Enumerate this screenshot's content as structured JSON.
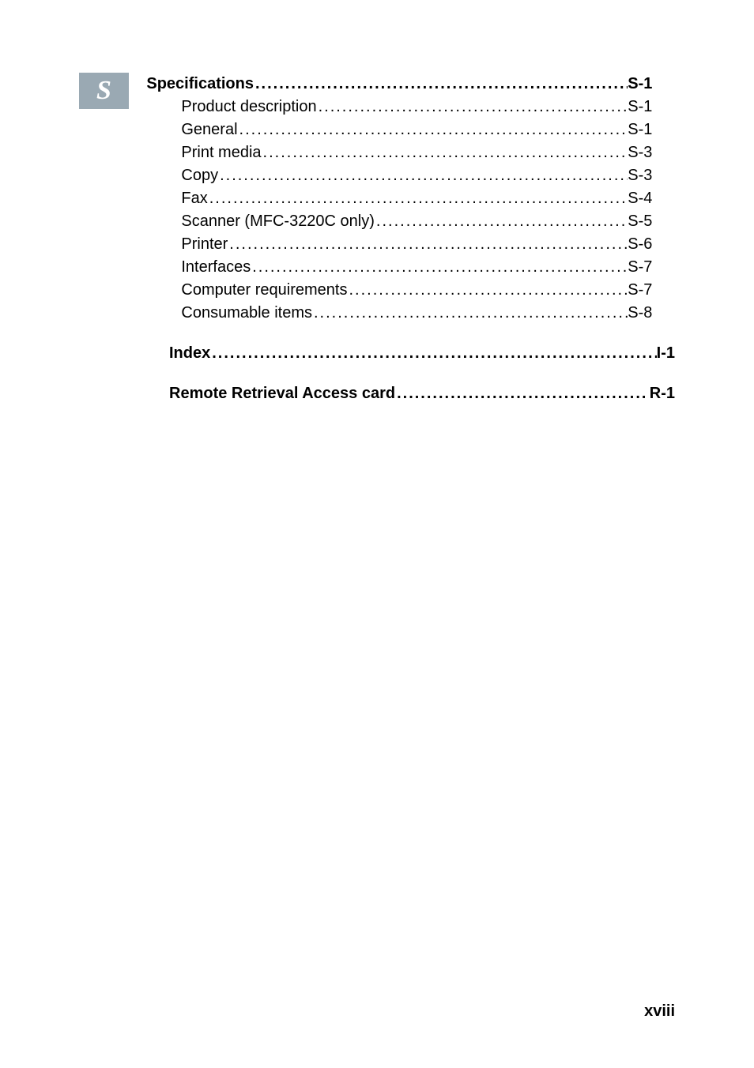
{
  "section_badge": "S",
  "toc": {
    "specifications": {
      "title": "Specifications",
      "page": "S-1",
      "items": [
        {
          "label": "Product description",
          "page": "S-1"
        },
        {
          "label": "General",
          "page": "S-1"
        },
        {
          "label": "Print media",
          "page": "S-3"
        },
        {
          "label": "Copy",
          "page": "S-3"
        },
        {
          "label": "Fax",
          "page": "S-4"
        },
        {
          "label": "Scanner (MFC-3220C only)",
          "page": "S-5"
        },
        {
          "label": "Printer",
          "page": "S-6"
        },
        {
          "label": "Interfaces",
          "page": "S-7"
        },
        {
          "label": "Computer requirements",
          "page": "S-7"
        },
        {
          "label": "Consumable items",
          "page": "S-8"
        }
      ]
    },
    "index": {
      "title": "Index",
      "page": "I-1"
    },
    "remote": {
      "title": "Remote Retrieval Access card",
      "page": "R-1"
    }
  },
  "page_number": "xviii",
  "colors": {
    "badge_bg": "#9aa9b3",
    "badge_fg": "#ffffff",
    "text": "#000000",
    "background": "#ffffff"
  },
  "typography": {
    "body_fontsize": 20,
    "badge_fontsize": 34,
    "pagenum_fontsize": 20
  }
}
